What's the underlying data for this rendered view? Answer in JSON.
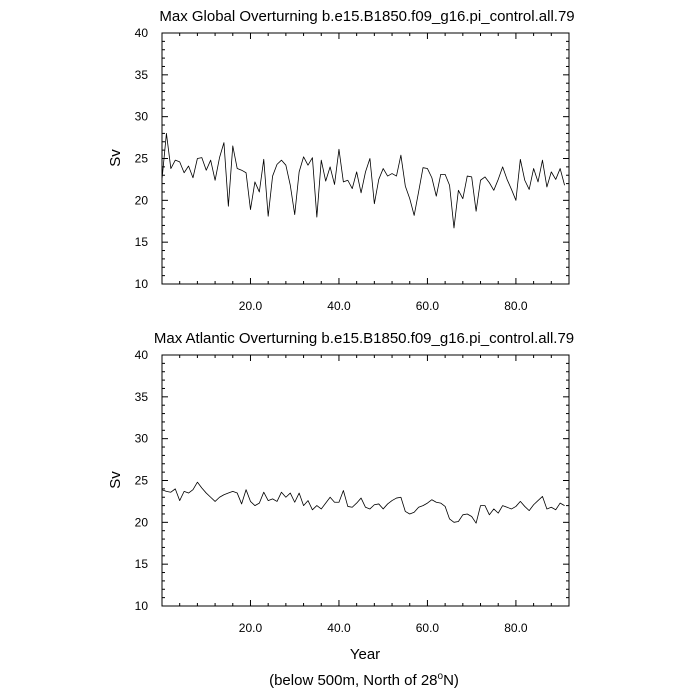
{
  "chart_data": [
    {
      "type": "line",
      "title": "Max Global Overturning b.e15.B1850.f09_g16.pi_control.all.79",
      "ylabel": "Sv",
      "xlabel": "",
      "xlim": [
        0,
        92
      ],
      "ylim": [
        10,
        40
      ],
      "x_ticks": [
        "20.0",
        "40.0",
        "60.0",
        "80.0"
      ],
      "y_ticks": [
        "10",
        "15",
        "20",
        "25",
        "30",
        "35",
        "40"
      ],
      "series": [
        {
          "x": [
            0,
            1,
            2,
            3,
            4,
            5,
            6,
            7,
            8,
            9,
            10,
            11,
            12,
            13,
            14,
            15,
            16,
            17,
            18,
            19,
            20,
            21,
            22,
            23,
            24,
            25,
            26,
            27,
            28,
            29,
            30,
            31,
            32,
            33,
            34,
            35,
            36,
            37,
            38,
            39,
            40,
            41,
            42,
            43,
            44,
            45,
            46,
            47,
            48,
            49,
            50,
            51,
            52,
            53,
            54,
            55,
            56,
            57,
            58,
            59,
            60,
            61,
            62,
            63,
            64,
            65,
            66,
            67,
            68,
            69,
            70,
            71,
            72,
            73,
            74,
            75,
            76,
            77,
            78,
            79,
            80,
            81,
            82,
            83,
            84,
            85,
            86,
            87,
            88,
            89,
            90,
            91
          ],
          "y": [
            22.5,
            28,
            23.8,
            24.8,
            24.6,
            23.3,
            24.1,
            22.7,
            25.0,
            25.1,
            23.6,
            24.8,
            22.4,
            25.1,
            26.9,
            19.3,
            26.5,
            23.8,
            23.6,
            23.3,
            18.9,
            22.2,
            21.0,
            24.9,
            18.1,
            22.9,
            24.3,
            24.8,
            24.2,
            21.8,
            18.3,
            23.4,
            25.2,
            24.2,
            25.1,
            18.0,
            24.8,
            22.3,
            24.0,
            21.9,
            26.1,
            22.2,
            22.4,
            21.4,
            23.4,
            20.9,
            23.4,
            25.0,
            19.6,
            22.5,
            23.8,
            22.9,
            23.2,
            22.9,
            25.4,
            21.7,
            20.2,
            18.2,
            21.0,
            23.9,
            23.8,
            22.7,
            20.5,
            23.1,
            23.1,
            21.8,
            16.7,
            21.2,
            20.2,
            22.9,
            22.8,
            18.7,
            22.4,
            22.8,
            22.1,
            21.2,
            22.5,
            24.0,
            22.5,
            21.3,
            20.0,
            24.9,
            22.4,
            21.3,
            23.8,
            22.2,
            24.8,
            21.6,
            23.4,
            22.5,
            23.8,
            21.8
          ]
        }
      ]
    },
    {
      "type": "line",
      "title": "Max Atlantic Overturning b.e15.B1850.f09_g16.pi_control.all.79",
      "ylabel": "Sv",
      "xlabel": "Year",
      "xlim": [
        0,
        92
      ],
      "ylim": [
        10,
        40
      ],
      "x_ticks": [
        "20.0",
        "40.0",
        "60.0",
        "80.0"
      ],
      "y_ticks": [
        "10",
        "15",
        "20",
        "25",
        "30",
        "35",
        "40"
      ],
      "series": [
        {
          "x": [
            0,
            1,
            2,
            3,
            4,
            5,
            6,
            7,
            8,
            9,
            10,
            11,
            12,
            13,
            14,
            15,
            16,
            17,
            18,
            19,
            20,
            21,
            22,
            23,
            24,
            25,
            26,
            27,
            28,
            29,
            30,
            31,
            32,
            33,
            34,
            35,
            36,
            37,
            38,
            39,
            40,
            41,
            42,
            43,
            44,
            45,
            46,
            47,
            48,
            49,
            50,
            51,
            52,
            53,
            54,
            55,
            56,
            57,
            58,
            59,
            60,
            61,
            62,
            63,
            64,
            65,
            66,
            67,
            68,
            69,
            70,
            71,
            72,
            73,
            74,
            75,
            76,
            77,
            78,
            79,
            80,
            81,
            82,
            83,
            84,
            85,
            86,
            87,
            88,
            89,
            90,
            91
          ],
          "y": [
            23.9,
            23.7,
            23.6,
            24.0,
            22.6,
            23.7,
            23.5,
            23.9,
            24.8,
            24.1,
            23.5,
            23.0,
            22.5,
            23.0,
            23.3,
            23.5,
            23.7,
            23.5,
            22.2,
            23.9,
            22.5,
            22.0,
            22.3,
            23.6,
            22.6,
            22.8,
            22.5,
            23.6,
            23.0,
            23.5,
            22.4,
            23.5,
            22.0,
            22.6,
            21.5,
            22.0,
            21.6,
            22.3,
            23.0,
            22.4,
            22.4,
            23.8,
            21.9,
            21.8,
            22.3,
            22.9,
            21.8,
            21.6,
            22.1,
            22.2,
            21.6,
            22.2,
            22.6,
            22.9,
            23.0,
            21.3,
            21.0,
            21.2,
            21.8,
            22.0,
            22.3,
            22.7,
            22.4,
            22.3,
            21.9,
            20.4,
            20.0,
            20.1,
            20.9,
            21.0,
            20.7,
            19.9,
            22.0,
            22.0,
            20.9,
            21.6,
            21.1,
            22.0,
            21.8,
            21.6,
            21.9,
            22.5,
            21.9,
            21.4,
            22.1,
            22.6,
            23.1,
            21.6,
            21.8,
            21.5,
            22.3,
            22.0
          ]
        }
      ]
    }
  ],
  "footnote": {
    "prefix": "(below 500m, North of 28",
    "superscript": "o",
    "suffix": "N)"
  }
}
